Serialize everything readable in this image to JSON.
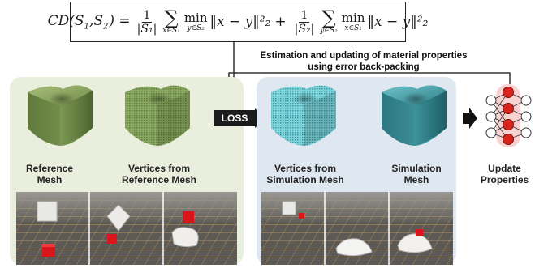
{
  "formula": {
    "lhs": "CD(S",
    "lhs_sub1": "1",
    "lhs_sep": ",S",
    "lhs_sub2": "2",
    "eq": ") =",
    "frac1_num": "1",
    "frac1_den": "|S₁|",
    "sum1_sub": "x∈S₁",
    "min1_sub": "y∈S₂",
    "term1": "‖x − y‖²₂",
    "plus": "+",
    "frac2_num": "1",
    "frac2_den": "|S₂|",
    "sum2_sub": "y∈S₂",
    "min2_sub": "x∈S₁",
    "term2": "‖x − y‖²₂",
    "min_word": "min",
    "sum_symbol": "∑"
  },
  "estimation_note": {
    "line1": "Estimation and updating of material properties",
    "line2": "using error back-packing"
  },
  "loss_label": "LOSS",
  "captions": {
    "reference_mesh_1": "Reference",
    "reference_mesh_2": "Mesh",
    "vertices_reference_1": "Vertices from",
    "vertices_reference_2": "Reference Mesh",
    "vertices_simulation_1": "Vertices from",
    "vertices_simulation_2": "Simulation Mesh",
    "simulation_mesh_1": "Simulation",
    "simulation_mesh_2": "Mesh",
    "update_1": "Update",
    "update_2": "Properties"
  },
  "colors": {
    "reference_mesh": "#7d9a55",
    "simulation_mesh": "#3f97a0",
    "left_panel": "#eaeedd",
    "right_panel": "#dfe7f1",
    "network_node_active": "#d8231e"
  }
}
